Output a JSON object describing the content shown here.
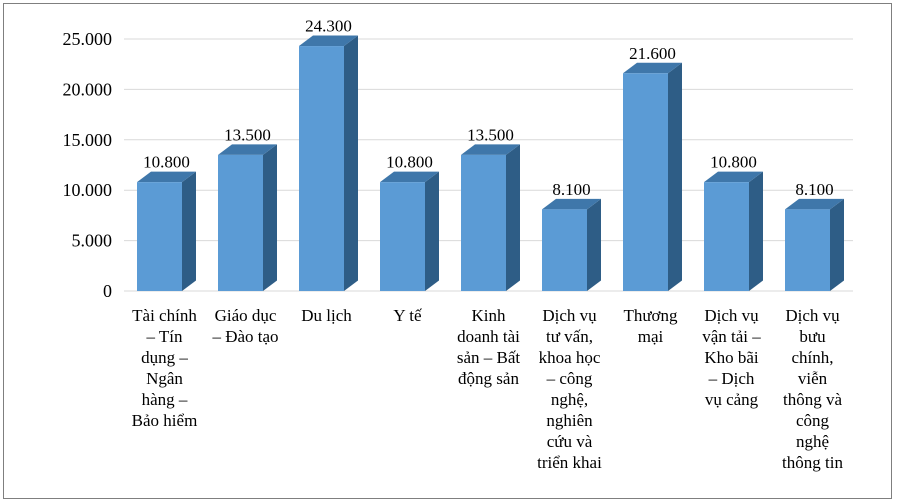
{
  "chart_data": {
    "type": "bar",
    "style": "3d-column",
    "title": "",
    "xlabel": "",
    "ylabel": "",
    "ylim": [
      0,
      25000
    ],
    "yticks": [
      "0",
      "5.000",
      "10.000",
      "15.000",
      "20.000",
      "25.000"
    ],
    "grid": true,
    "legend": "none",
    "categories": [
      [
        "Tài chính",
        "– Tín",
        "dụng –",
        "Ngân",
        "hàng –",
        "Bảo hiểm"
      ],
      [
        "Giáo dục",
        "– Đào tạo"
      ],
      [
        "Du lịch"
      ],
      [
        "Y tế"
      ],
      [
        "Kinh",
        "doanh tài",
        "sản – Bất",
        "động sản"
      ],
      [
        "Dịch vụ",
        "tư vấn,",
        "khoa học",
        "– công",
        "nghệ,",
        "nghiên",
        "cứu và",
        "triển khai"
      ],
      [
        "Thương",
        "mại"
      ],
      [
        "Dịch vụ",
        "vận tải –",
        "Kho bãi",
        "– Dịch",
        "vụ cảng"
      ],
      [
        "Dịch vụ",
        "bưu",
        "chính,",
        "viễn",
        "thông và",
        "công",
        "nghệ",
        "thông tin"
      ]
    ],
    "values": [
      10800,
      13500,
      24300,
      10800,
      13500,
      8100,
      21600,
      10800,
      8100
    ],
    "value_labels": [
      "10.800",
      "13.500",
      "24.300",
      "10.800",
      "13.500",
      "8.100",
      "21.600",
      "10.800",
      "8.100"
    ],
    "colors": {
      "front": "#5b9bd5",
      "side": "#2e5d86",
      "top": "#3f77aa",
      "grid": "#d9d9d9"
    }
  }
}
